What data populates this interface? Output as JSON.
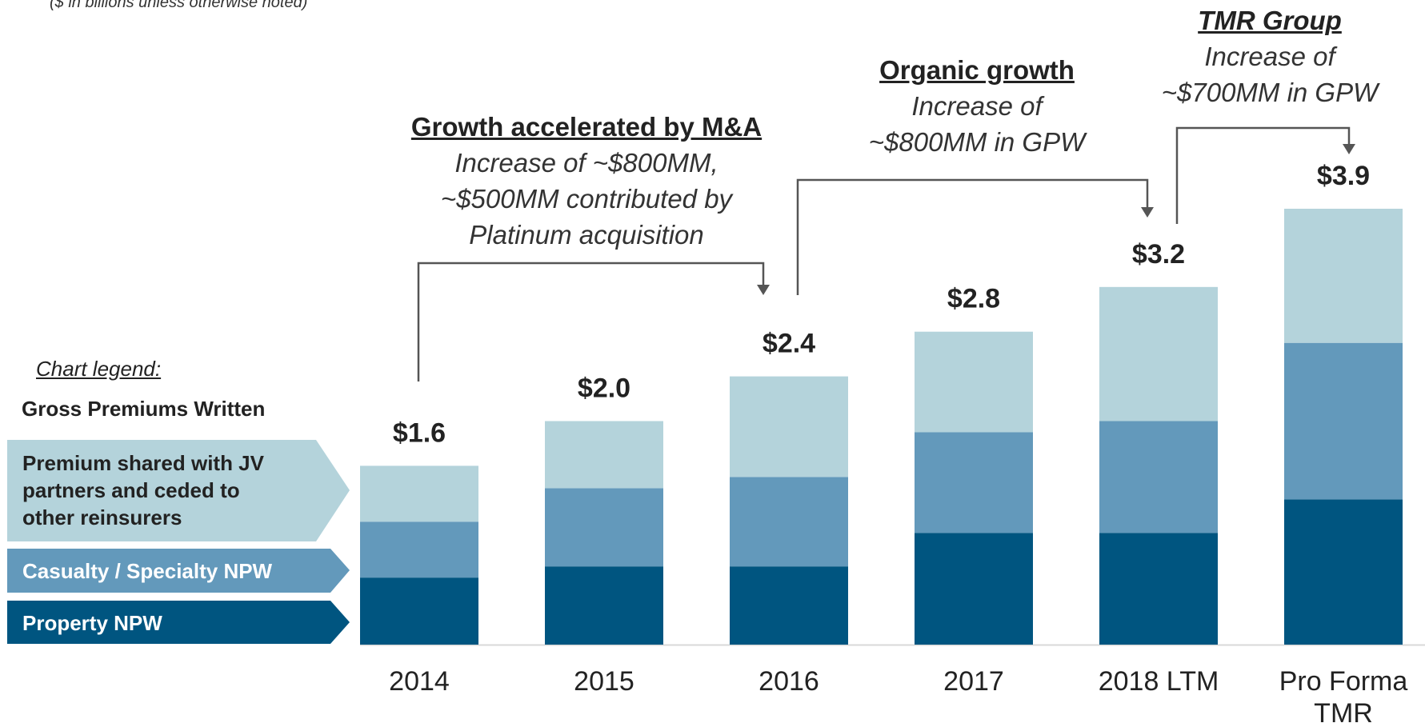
{
  "chart_data": {
    "type": "stacked_bar",
    "subtitle": "($ in billions unless otherwise noted)",
    "legend_title": "Chart legend:",
    "legend_subtitle": "Gross Premiums Written",
    "categories": [
      "2014",
      "2015",
      "2016",
      "2017",
      "2018 LTM",
      "Pro Forma TMR"
    ],
    "series": [
      {
        "name": "Property NPW",
        "color": "#005580",
        "values": [
          0.6,
          0.7,
          0.7,
          1.0,
          1.0,
          1.3
        ]
      },
      {
        "name": "Casualty / Specialty NPW",
        "color": "#6399bb",
        "values": [
          0.5,
          0.7,
          0.8,
          0.9,
          1.0,
          1.4
        ]
      },
      {
        "name": "Premium shared with JV partners and ceded to other reinsurers",
        "color": "#b4d3db",
        "values": [
          0.5,
          0.6,
          0.9,
          0.9,
          1.2,
          1.2
        ]
      }
    ],
    "totals": {
      "values": [
        1.6,
        2.0,
        2.4,
        2.8,
        3.2,
        3.9
      ],
      "value_labels": [
        "$1.6",
        "$2.0",
        "$2.4",
        "$2.8",
        "$3.2",
        "$3.9"
      ]
    },
    "annotations": [
      {
        "title": "Growth accelerated by M&A",
        "lines": [
          "Increase of  ~$800MM,",
          "~$500MM contributed by",
          "Platinum acquisition"
        ]
      },
      {
        "title": "Organic growth",
        "lines": [
          "Increase of",
          "~$800MM in GPW"
        ]
      },
      {
        "title": "TMR Group",
        "lines": [
          "Increase of",
          "~$700MM in GPW"
        ]
      }
    ]
  }
}
